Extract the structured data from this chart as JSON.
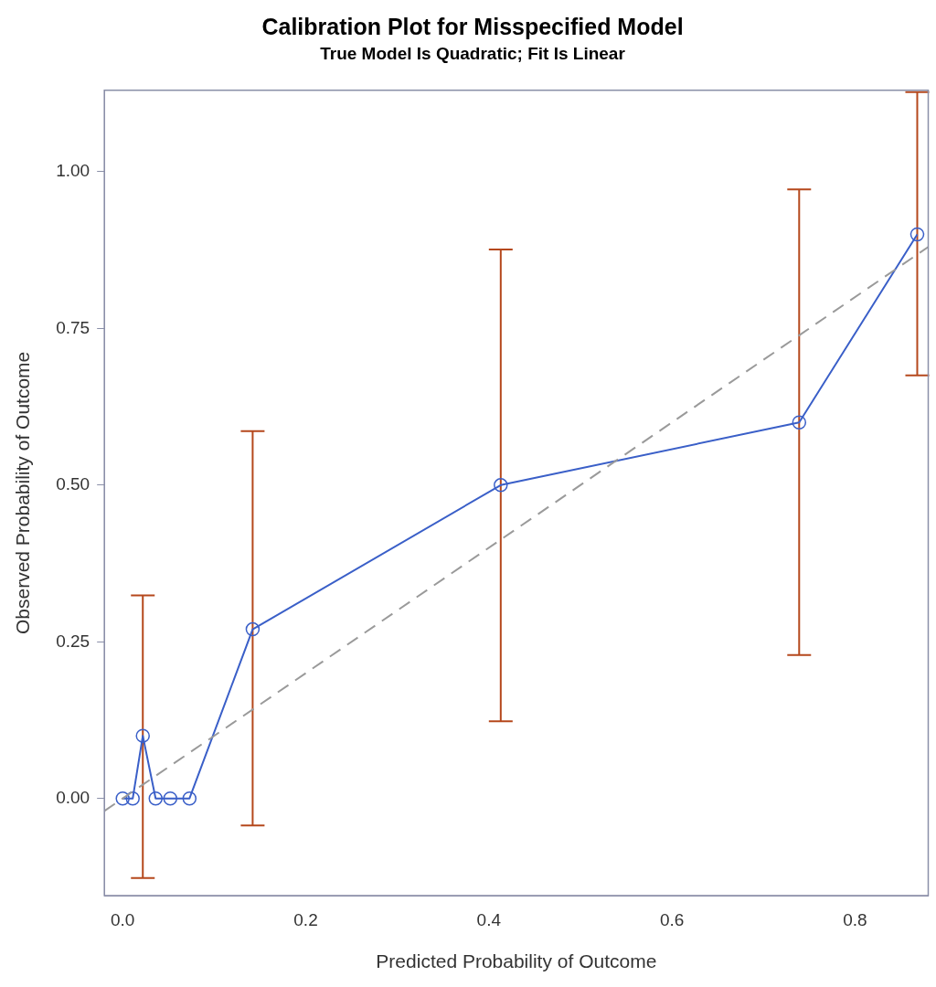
{
  "chart_data": {
    "type": "line",
    "title": "Calibration Plot for Misspecified Model",
    "subtitle": "True Model Is Quadratic; Fit Is Linear",
    "xlabel": "Predicted Probability of Outcome",
    "ylabel": "Observed Probability of Outcome",
    "xlim": [
      -0.02,
      0.88
    ],
    "xticks": [
      {
        "value": 0,
        "label": "0.0"
      },
      0.2,
      0.4,
      0.6,
      0.8
    ],
    "ylim": [
      -0.155,
      1.13
    ],
    "yticks": [
      {
        "value": 0,
        "label": "0.00"
      },
      0.25,
      {
        "value": 0.5,
        "label": "0.50"
      },
      0.75,
      {
        "value": 1,
        "label": "1.00"
      }
    ],
    "grid": false,
    "legend": false,
    "series": [
      {
        "color": "#3a5fc8",
        "marker": "circle",
        "line_style": "solid",
        "x": [
          0,
          0.011,
          0.022,
          0.036,
          0.052,
          0.073,
          0.142,
          0.413,
          0.739,
          0.868
        ],
        "values": [
          0,
          0,
          0.1,
          0,
          0,
          0,
          0.27,
          0.5,
          0.6,
          0.9
        ],
        "errors": [
          null,
          null,
          [
            -0.127,
            0.324
          ],
          null,
          null,
          null,
          [
            -0.043,
            0.586
          ],
          [
            0.123,
            0.876
          ],
          [
            0.229,
            0.972
          ],
          [
            0.675,
            1.127
          ]
        ]
      },
      {
        "color": "#9a9a9a",
        "marker": "none",
        "line_style": "dashed",
        "x": [
          -0.02,
          0.88
        ],
        "values": [
          -0.02,
          0.88
        ]
      }
    ]
  }
}
